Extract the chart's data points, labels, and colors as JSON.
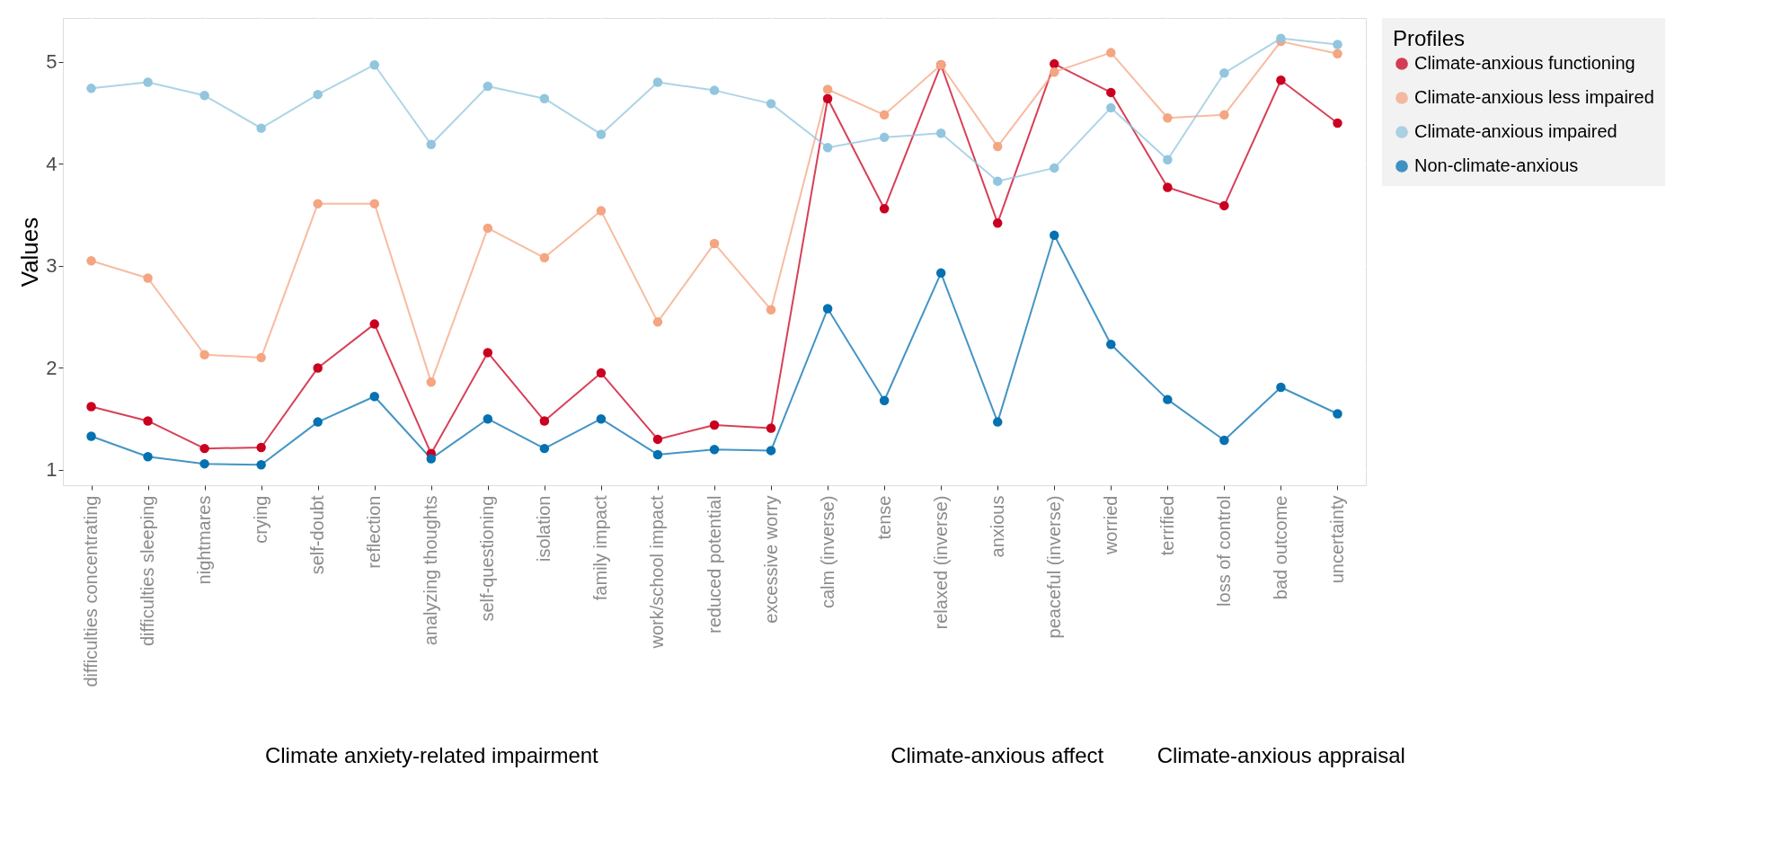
{
  "chart_data": {
    "type": "line",
    "ylabel": "Values",
    "legend_title": "Profiles",
    "legend": "right",
    "grid": true,
    "marker": "circle",
    "line_style": "solid",
    "categories": [
      "difficulties concentrating",
      "difficulties sleeping",
      "nightmares",
      "crying",
      "self-doubt",
      "reflection",
      "analyzing thoughts",
      "self-questioning",
      "isolation",
      "family impact",
      "work/school impact",
      "reduced potential",
      "excessive worry",
      "calm (inverse)",
      "tense",
      "relaxed (inverse)",
      "anxious",
      "peaceful (inverse)",
      "worried",
      "terrified",
      "loss of control",
      "bad outcome",
      "uncertainty"
    ],
    "ylim": [
      0.85,
      5.43
    ],
    "yticks": [
      1,
      2,
      3,
      4,
      5
    ],
    "series": [
      {
        "name": "Climate-anxious functioning",
        "color": "#ca0020",
        "values": [
          1.62,
          1.48,
          1.21,
          1.22,
          2.0,
          2.43,
          1.16,
          2.15,
          1.48,
          1.95,
          1.3,
          1.44,
          1.41,
          4.64,
          3.56,
          4.97,
          3.42,
          4.98,
          4.7,
          3.77,
          3.59,
          4.82,
          4.4
        ]
      },
      {
        "name": "Climate-anxious less impaired",
        "color": "#f4a582",
        "values": [
          3.05,
          2.88,
          2.13,
          2.1,
          3.61,
          3.61,
          1.86,
          3.37,
          3.08,
          3.54,
          2.45,
          3.22,
          2.57,
          4.73,
          4.48,
          4.97,
          4.17,
          4.9,
          5.09,
          4.45,
          4.48,
          5.2,
          5.08
        ]
      },
      {
        "name": "Climate-anxious impaired",
        "color": "#92c5de",
        "values": [
          4.74,
          4.8,
          4.67,
          4.35,
          4.68,
          4.97,
          4.19,
          4.76,
          4.64,
          4.29,
          4.8,
          4.72,
          4.59,
          4.16,
          4.26,
          4.3,
          3.83,
          3.96,
          4.55,
          4.04,
          4.89,
          5.23,
          5.17
        ]
      },
      {
        "name": "Non-climate-anxious",
        "color": "#0571b0",
        "values": [
          1.33,
          1.13,
          1.06,
          1.05,
          1.47,
          1.72,
          1.11,
          1.5,
          1.21,
          1.5,
          1.15,
          1.2,
          1.19,
          2.58,
          1.68,
          2.93,
          1.47,
          3.3,
          2.23,
          1.69,
          1.29,
          1.81,
          1.55
        ]
      }
    ],
    "annotations": [
      "Climate anxiety-related impairment",
      "Climate-anxious affect",
      "Climate-anxious appraisal"
    ]
  }
}
